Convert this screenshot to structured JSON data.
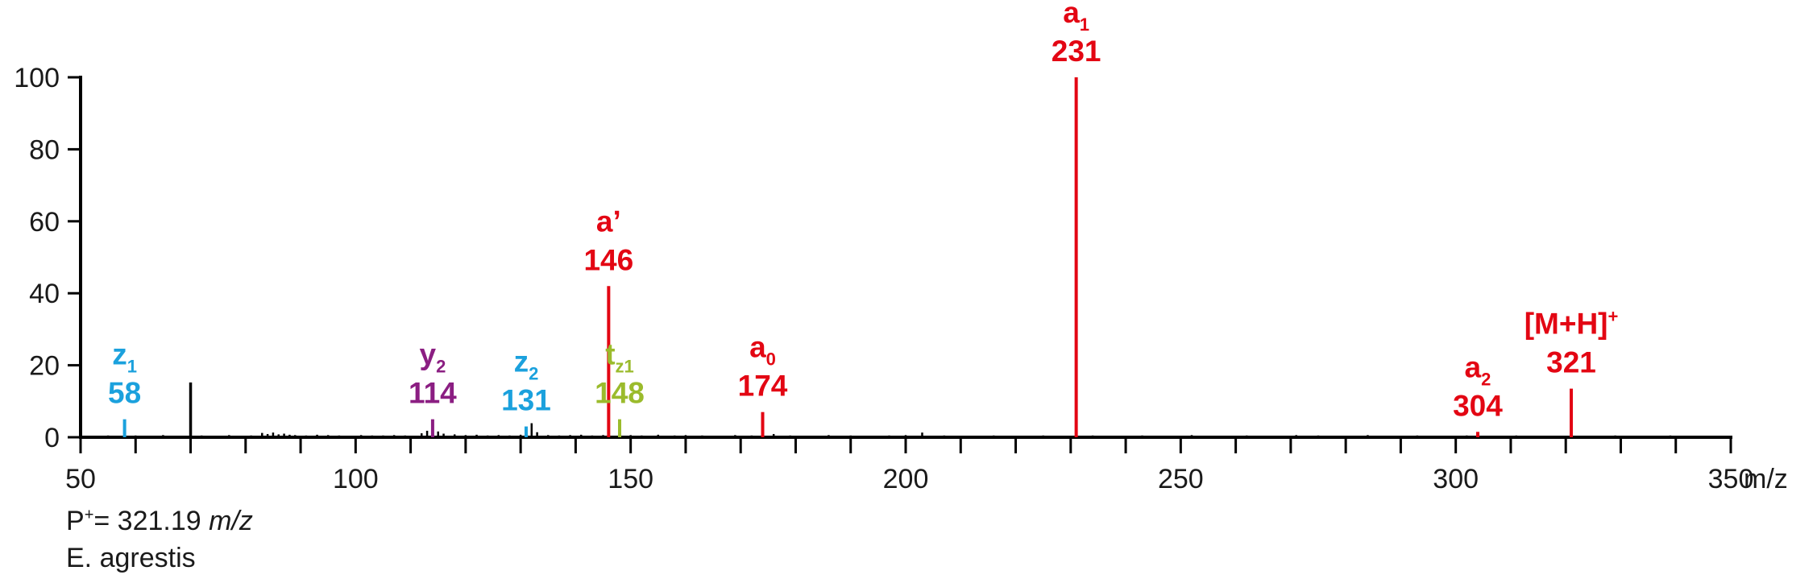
{
  "chart_data": {
    "type": "bar",
    "xlabel": "m/z",
    "ylabel": "",
    "xlim": [
      50,
      350
    ],
    "ylim": [
      0,
      100
    ],
    "x_ticks": [
      50,
      100,
      150,
      200,
      250,
      300,
      350
    ],
    "y_ticks": [
      0,
      20,
      40,
      60,
      80,
      100
    ],
    "grid": false,
    "colors": {
      "axis": "#000000",
      "black_peak": "#000000",
      "red": "#e30613",
      "blue": "#1ba1dd",
      "purple": "#8b1e82",
      "green": "#9bbb2c"
    },
    "labeled_peaks": [
      {
        "name": "z",
        "sub": "1",
        "sup": "",
        "mz": 58,
        "intensity": 5,
        "color": "blue"
      },
      {
        "name": "y",
        "sub": "2",
        "sup": "",
        "mz": 114,
        "intensity": 5,
        "color": "purple"
      },
      {
        "name": "z",
        "sub": "2",
        "sup": "",
        "mz": 131,
        "intensity": 3,
        "color": "blue"
      },
      {
        "name": "a’",
        "sub": "",
        "sup": "",
        "mz": 146,
        "intensity": 42,
        "color": "red"
      },
      {
        "name": "t",
        "sub": "z1",
        "sup": "",
        "mz": 148,
        "intensity": 5,
        "color": "green"
      },
      {
        "name": "a",
        "sub": "0",
        "sup": "",
        "mz": 174,
        "intensity": 7,
        "color": "red"
      },
      {
        "name": "a",
        "sub": "1",
        "sup": "",
        "mz": 231,
        "intensity": 100,
        "color": "red"
      },
      {
        "name": "a",
        "sub": "2",
        "sup": "",
        "mz": 304,
        "intensity": 1.5,
        "color": "red"
      },
      {
        "name": "[M+H]",
        "sub": "",
        "sup": "+",
        "mz": 321,
        "intensity": 13.5,
        "color": "red"
      }
    ],
    "unlabeled_peaks": {
      "mz": [
        52,
        55,
        57,
        60,
        63,
        65,
        67,
        70,
        72,
        74,
        77,
        79,
        81,
        83,
        84,
        85,
        86,
        87,
        88,
        89,
        91,
        93,
        95,
        97,
        99,
        101,
        103,
        105,
        107,
        109,
        112,
        113,
        115,
        116,
        118,
        120,
        122,
        124,
        126,
        128,
        130,
        132,
        133,
        135,
        137,
        139,
        141,
        143,
        145,
        150,
        152,
        155,
        158,
        160,
        163,
        166,
        169,
        172,
        176,
        179,
        182,
        186,
        190,
        194,
        197,
        200,
        203,
        207,
        212,
        216,
        220,
        225,
        229,
        234,
        238,
        243,
        248,
        252,
        257,
        262,
        266,
        271,
        275,
        279,
        284,
        289,
        293,
        298,
        302,
        307,
        311,
        316,
        324,
        329,
        334,
        339,
        344
      ],
      "intensity": [
        0.4,
        0.5,
        0.3,
        0.5,
        0.4,
        0.6,
        0.4,
        15.2,
        0.5,
        0.4,
        0.6,
        0.4,
        0.5,
        1.2,
        0.9,
        1.3,
        0.8,
        1.0,
        0.7,
        0.6,
        0.5,
        0.7,
        0.6,
        0.5,
        0.4,
        0.6,
        0.5,
        0.5,
        0.6,
        0.5,
        1.1,
        1.8,
        1.6,
        1.0,
        0.8,
        0.6,
        0.7,
        0.5,
        0.6,
        0.5,
        0.7,
        3.9,
        1.4,
        0.6,
        0.5,
        0.6,
        0.7,
        0.5,
        0.6,
        0.6,
        0.5,
        0.7,
        0.5,
        0.6,
        0.5,
        0.4,
        0.6,
        0.5,
        0.9,
        0.5,
        0.4,
        0.6,
        0.5,
        0.4,
        0.5,
        0.6,
        1.3,
        0.5,
        0.4,
        0.5,
        0.4,
        0.5,
        0.4,
        0.5,
        0.4,
        0.5,
        0.4,
        0.6,
        0.4,
        0.5,
        0.4,
        0.6,
        0.5,
        0.4,
        0.6,
        0.4,
        0.5,
        0.4,
        0.5,
        0.4,
        0.5,
        0.4,
        0.4,
        0.5,
        0.4,
        0.5,
        0.4
      ]
    }
  },
  "footer": {
    "precursor_prefix": "P",
    "precursor_sup": "+",
    "precursor_value": "= 321.19",
    "precursor_unit": "m/z",
    "species": "E. agrestis"
  }
}
